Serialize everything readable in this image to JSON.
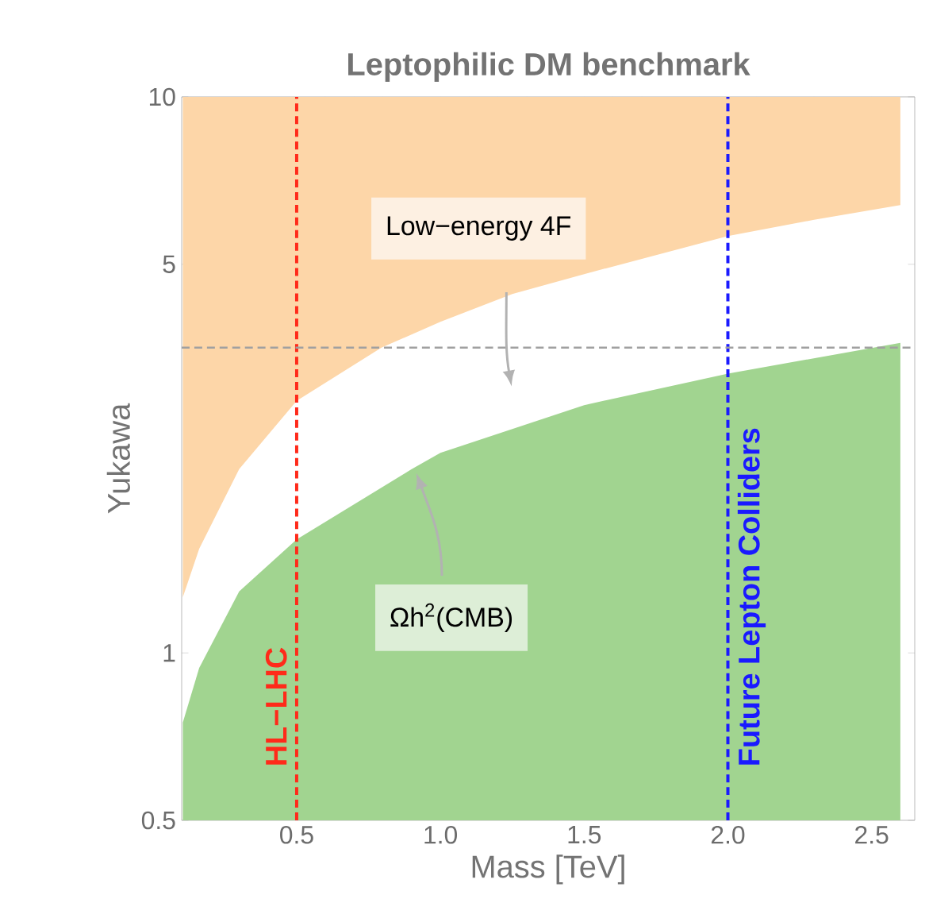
{
  "chart_data": {
    "type": "area",
    "title": "Leptophilic DM benchmark",
    "xlabel": "Mass [TeV]",
    "ylabel": "Yukawa",
    "log": "y",
    "grid": false,
    "xlim": [
      0.1,
      2.65
    ],
    "ylim": [
      0.5,
      10
    ],
    "xticks": [
      0.5,
      {
        "value": 1.0,
        "label": "1.0"
      },
      1.5,
      {
        "value": 2.0,
        "label": "2.0"
      },
      2.5
    ],
    "yticks": [
      0.5,
      1,
      5,
      10
    ],
    "series": [
      {
        "color": "#fdd6a8",
        "x": [
          0.104,
          0.104,
          0.161,
          0.3,
          0.5,
          0.795,
          1.0,
          1.25,
          1.5,
          2.0,
          2.3,
          2.6,
          2.6
        ],
        "values": [
          10,
          1.26,
          1.54,
          2.14,
          2.84,
          3.54,
          3.94,
          4.42,
          4.8,
          5.62,
          6.01,
          6.39,
          10
        ]
      },
      {
        "color": "#a1d490",
        "x": [
          0.104,
          0.104,
          0.161,
          0.3,
          0.5,
          0.9,
          1.0,
          1.5,
          2.0,
          2.6,
          2.6
        ],
        "values": [
          0.5,
          0.75,
          0.94,
          1.29,
          1.6,
          2.14,
          2.29,
          2.79,
          3.18,
          3.61,
          0.5
        ]
      }
    ],
    "ref_lines": [
      {
        "axis": "x",
        "value": 0.5,
        "label": "HL−LHC",
        "color": "#ff2a1a",
        "line_style": "dashed"
      },
      {
        "axis": "x",
        "value": 2.0,
        "label": "Future Lepton Colliders",
        "color": "#1a1aff",
        "line_style": "dashed"
      },
      {
        "axis": "y",
        "value": 3.54,
        "color": "#a0a0a0",
        "line_style": "dashed"
      }
    ],
    "annotations": [
      "Low−energy 4F",
      "Ωh$^{2}$(CMB)"
    ]
  }
}
